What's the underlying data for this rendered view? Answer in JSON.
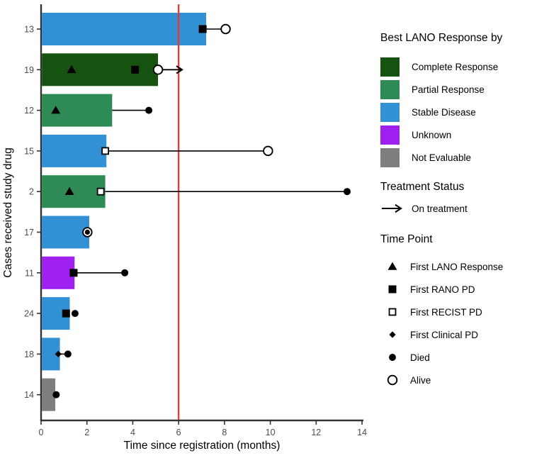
{
  "chart_data": {
    "type": "bar",
    "subtype": "swimmer-plot",
    "title": "",
    "xlabel": "Time since registration (months)",
    "ylabel": "Cases received study drug",
    "xlim": [
      0,
      14
    ],
    "xticks": [
      0,
      2,
      4,
      6,
      8,
      10,
      12,
      14
    ],
    "grid": "off",
    "legend_position": "right",
    "reference_line_x": 6,
    "reference_line_color": "#FC2D2D",
    "categories": [
      "13",
      "19",
      "12",
      "15",
      "2",
      "17",
      "11",
      "24",
      "18",
      "14"
    ],
    "values": [
      7.2,
      5.1,
      3.1,
      2.85,
      2.8,
      2.1,
      1.46,
      1.25,
      0.82,
      0.62
    ],
    "cases": [
      {
        "id": "13",
        "response": "Stable Disease",
        "bar": 7.2,
        "markers": [
          {
            "type": "first-rano-pd",
            "x": 7.05
          },
          {
            "type": "alive",
            "x": 8.05
          }
        ],
        "connector": [
          7.05,
          8.05
        ],
        "arrow": null
      },
      {
        "id": "19",
        "response": "Complete Response",
        "bar": 5.1,
        "markers": [
          {
            "type": "first-lano-response",
            "x": 1.33
          },
          {
            "type": "first-rano-pd",
            "x": 4.1
          },
          {
            "type": "alive",
            "x": 5.1
          }
        ],
        "connector": null,
        "arrow": [
          5.3,
          6.15
        ]
      },
      {
        "id": "12",
        "response": "Partial Response",
        "bar": 3.1,
        "markers": [
          {
            "type": "first-lano-response",
            "x": 0.64
          },
          {
            "type": "died",
            "x": 4.7
          }
        ],
        "connector": [
          3.1,
          4.7
        ],
        "arrow": null
      },
      {
        "id": "15",
        "response": "Stable Disease",
        "bar": 2.85,
        "markers": [
          {
            "type": "first-recist-pd",
            "x": 2.8
          },
          {
            "type": "alive",
            "x": 9.9
          }
        ],
        "connector": [
          2.85,
          9.9
        ],
        "arrow": null
      },
      {
        "id": "2",
        "response": "Partial Response",
        "bar": 2.8,
        "markers": [
          {
            "type": "first-lano-response",
            "x": 1.24
          },
          {
            "type": "first-recist-pd",
            "x": 2.6
          },
          {
            "type": "died",
            "x": 13.35
          }
        ],
        "connector": [
          2.8,
          13.35
        ],
        "arrow": null
      },
      {
        "id": "17",
        "response": "Stable Disease",
        "bar": 2.1,
        "markers": [
          {
            "type": "alive",
            "x": 2.02
          },
          {
            "type": "died",
            "x": 2.02,
            "size": "small"
          }
        ],
        "connector": null,
        "arrow": null
      },
      {
        "id": "11",
        "response": "Unknown",
        "bar": 1.46,
        "markers": [
          {
            "type": "first-rano-pd",
            "x": 1.42
          },
          {
            "type": "died",
            "x": 3.65
          }
        ],
        "connector": [
          1.42,
          3.65
        ],
        "arrow": null
      },
      {
        "id": "24",
        "response": "Stable Disease",
        "bar": 1.25,
        "markers": [
          {
            "type": "first-rano-pd",
            "x": 1.09
          },
          {
            "type": "died",
            "x": 1.48
          }
        ],
        "connector": null,
        "arrow": null
      },
      {
        "id": "18",
        "response": "Stable Disease",
        "bar": 0.82,
        "markers": [
          {
            "type": "first-clinical-pd",
            "x": 0.75
          },
          {
            "type": "died",
            "x": 1.17
          }
        ],
        "connector": [
          0.75,
          1.17
        ],
        "arrow": null
      },
      {
        "id": "14",
        "response": "Not Evaluable",
        "bar": 0.62,
        "markers": [
          {
            "type": "died",
            "x": 0.66
          }
        ],
        "connector": null,
        "arrow": null
      }
    ]
  },
  "legend": {
    "response_title": "Best LANO Response by",
    "response_items": [
      {
        "label": "Complete Response",
        "color": "#175310"
      },
      {
        "label": "Partial Response",
        "color": "#2F8B55"
      },
      {
        "label": "Stable Disease",
        "color": "#3191D4"
      },
      {
        "label": "Unknown",
        "color": "#A020F0"
      },
      {
        "label": "Not Evaluable",
        "color": "#7E7E7E"
      }
    ],
    "treatment_title": "Treatment Status",
    "treatment_items": [
      {
        "label": "On treatment",
        "marker": "arrow"
      }
    ],
    "timepoint_title": "Time Point",
    "timepoint_items": [
      {
        "label": "First LANO Response",
        "marker": "first-lano-response"
      },
      {
        "label": "First RANO PD",
        "marker": "first-rano-pd"
      },
      {
        "label": "First RECIST PD",
        "marker": "first-recist-pd"
      },
      {
        "label": "First Clinical PD",
        "marker": "first-clinical-pd"
      },
      {
        "label": "Died",
        "marker": "died"
      },
      {
        "label": "Alive",
        "marker": "alive"
      }
    ]
  },
  "colors": {
    "marker": "#000000",
    "axis": "#333333",
    "tick_text": "#4d4d4d"
  }
}
